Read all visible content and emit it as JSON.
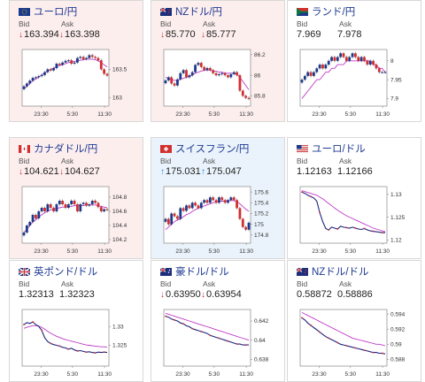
{
  "labels": {
    "bid": "Bid",
    "ask": "Ask"
  },
  "x_ticks": [
    "23:30",
    "5:30",
    "11:30"
  ],
  "cards": [
    {
      "id": "eur-jpy",
      "pair": "ユーロ/円",
      "flag": "eu",
      "bg": "pink",
      "bid": "163.394",
      "ask": "163.398",
      "bid_dir": "down",
      "ask_dir": "down",
      "chart_data": {
        "type": "candlestick",
        "ylim": [
          162.85,
          163.85
        ],
        "y_ticks": [
          "163.5",
          "163"
        ],
        "close": [
          163.2,
          163.25,
          163.3,
          163.35,
          163.36,
          163.38,
          163.4,
          163.45,
          163.5,
          163.48,
          163.52,
          163.6,
          163.58,
          163.62,
          163.65,
          163.66,
          163.6,
          163.62,
          163.7,
          163.72,
          163.68,
          163.7,
          163.75,
          163.72,
          163.7,
          163.66,
          163.5,
          163.42,
          163.39
        ],
        "ma": [
          163.15,
          163.2,
          163.25,
          163.3,
          163.33,
          163.36,
          163.4,
          163.44,
          163.47,
          163.5,
          163.52,
          163.55,
          163.57,
          163.58,
          163.6,
          163.62,
          163.63,
          163.64,
          163.65,
          163.66,
          163.67,
          163.68,
          163.68,
          163.68,
          163.67,
          163.65,
          163.62,
          163.58,
          163.54
        ]
      }
    },
    {
      "id": "nzd-jpy",
      "pair": "NZドル/円",
      "flag": "nz",
      "bg": "pink",
      "bid": "85.770",
      "ask": "85.777",
      "bid_dir": "down",
      "ask_dir": "down",
      "chart_data": {
        "type": "candlestick",
        "ylim": [
          85.7,
          86.25
        ],
        "y_ticks": [
          "86.2",
          "86",
          "85.8"
        ],
        "close": [
          85.95,
          85.98,
          85.92,
          85.9,
          85.96,
          86.02,
          86.05,
          85.98,
          86.0,
          86.03,
          86.1,
          86.12,
          86.08,
          86.05,
          86.07,
          86.05,
          86.02,
          86.0,
          86.01,
          86.02,
          86.0,
          85.98,
          86.01,
          86.03,
          86.0,
          85.85,
          85.8,
          85.78,
          85.77
        ],
        "ma": [
          85.98,
          85.97,
          85.96,
          85.95,
          85.95,
          85.96,
          85.97,
          85.98,
          85.99,
          86.0,
          86.02,
          86.03,
          86.04,
          86.05,
          86.05,
          86.05,
          86.04,
          86.04,
          86.03,
          86.03,
          86.02,
          86.02,
          86.02,
          86.02,
          86.01,
          85.98,
          85.94,
          85.9,
          85.86
        ]
      }
    },
    {
      "id": "zar-jpy",
      "pair": "ランド/円",
      "flag": "za",
      "bg": "white",
      "bid": "7.969",
      "ask": "7.978",
      "bid_dir": "none",
      "ask_dir": "none",
      "chart_data": {
        "type": "candlestick",
        "ylim": [
          7.88,
          8.03
        ],
        "y_ticks": [
          "8",
          "7.95",
          "7.9"
        ],
        "close": [
          7.95,
          7.96,
          7.97,
          7.96,
          7.97,
          7.98,
          7.99,
          7.98,
          7.99,
          8.0,
          8.01,
          8.0,
          8.01,
          8.02,
          8.01,
          8.0,
          8.01,
          8.02,
          8.01,
          8.0,
          8.01,
          8.0,
          7.99,
          8.0,
          7.99,
          7.98,
          7.97,
          7.97,
          7.97
        ],
        "ma": [
          7.9,
          7.91,
          7.92,
          7.93,
          7.94,
          7.95,
          7.95,
          7.96,
          7.97,
          7.97,
          7.98,
          7.98,
          7.99,
          7.99,
          7.99,
          8.0,
          8.0,
          8.0,
          8.0,
          8.0,
          8.0,
          8.0,
          8.0,
          8.0,
          7.99,
          7.99,
          7.98,
          7.98,
          7.97
        ]
      }
    },
    {
      "id": "cad-jpy",
      "pair": "カナダドル/円",
      "flag": "ca",
      "bg": "pink",
      "bid": "104.621",
      "ask": "104.627",
      "bid_dir": "down",
      "ask_dir": "down",
      "chart_data": {
        "type": "candlestick",
        "ylim": [
          104.15,
          104.95
        ],
        "y_ticks": [
          "104.8",
          "104.6",
          "104.4",
          "104.2"
        ],
        "close": [
          104.3,
          104.4,
          104.45,
          104.55,
          104.5,
          104.6,
          104.65,
          104.6,
          104.7,
          104.65,
          104.6,
          104.7,
          104.75,
          104.7,
          104.65,
          104.7,
          104.75,
          104.7,
          104.6,
          104.7,
          104.72,
          104.68,
          104.7,
          104.75,
          104.72,
          104.66,
          104.6,
          104.63,
          104.62
        ],
        "ma": [
          104.3,
          104.35,
          104.4,
          104.45,
          104.48,
          104.52,
          104.55,
          104.58,
          104.6,
          104.62,
          104.63,
          104.64,
          104.65,
          104.66,
          104.66,
          104.67,
          104.67,
          104.68,
          104.68,
          104.68,
          104.68,
          104.69,
          104.69,
          104.69,
          104.69,
          104.68,
          104.67,
          104.66,
          104.65
        ]
      }
    },
    {
      "id": "chf-jpy",
      "pair": "スイスフラン/円",
      "flag": "ch",
      "bg": "blue",
      "bid": "175.031",
      "ask": "175.047",
      "bid_dir": "up",
      "ask_dir": "up",
      "chart_data": {
        "type": "candlestick",
        "ylim": [
          174.65,
          175.7
        ],
        "y_ticks": [
          "175.6",
          "175.4",
          "175.2",
          "175",
          "174.8"
        ],
        "close": [
          175.1,
          175.0,
          175.2,
          175.15,
          175.1,
          175.3,
          175.25,
          175.35,
          175.3,
          175.4,
          175.35,
          175.3,
          175.4,
          175.45,
          175.4,
          175.5,
          175.45,
          175.4,
          175.5,
          175.45,
          175.4,
          175.45,
          175.5,
          175.45,
          175.3,
          175.1,
          174.95,
          174.9,
          175.03
        ],
        "ma": [
          174.9,
          174.95,
          175.0,
          175.05,
          175.08,
          175.1,
          175.14,
          175.18,
          175.2,
          175.24,
          175.27,
          175.3,
          175.32,
          175.34,
          175.36,
          175.38,
          175.4,
          175.41,
          175.42,
          175.43,
          175.43,
          175.44,
          175.44,
          175.44,
          175.42,
          175.38,
          175.33,
          175.28,
          175.24
        ]
      }
    },
    {
      "id": "eur-usd",
      "pair": "ユーロ/ドル",
      "flag": "us",
      "bg": "white",
      "bid": "1.12163",
      "ask": "1.12166",
      "bid_dir": "none",
      "ask_dir": "none",
      "chart_data": {
        "type": "line",
        "ylim": [
          1.1193,
          1.1317
        ],
        "y_ticks": [
          "1.13",
          "1.125",
          "1.12"
        ],
        "close": [
          1.1305,
          1.1302,
          1.1298,
          1.1295,
          1.1292,
          1.1285,
          1.126,
          1.124,
          1.1225,
          1.1222,
          1.1228,
          1.1226,
          1.1224,
          1.123,
          1.1228,
          1.1227,
          1.1226,
          1.1228,
          1.1226,
          1.1224,
          1.1223,
          1.1225,
          1.1222,
          1.122,
          1.1219,
          1.1218,
          1.1217,
          1.1216,
          1.1216
        ],
        "ma": [
          1.1308,
          1.1306,
          1.1304,
          1.1302,
          1.13,
          1.1298,
          1.1294,
          1.129,
          1.1285,
          1.128,
          1.1275,
          1.127,
          1.1265,
          1.1261,
          1.1257,
          1.1253,
          1.125,
          1.1247,
          1.1244,
          1.1241,
          1.1238,
          1.1235,
          1.1232,
          1.1229,
          1.1226,
          1.1224,
          1.1222,
          1.122,
          1.1218
        ]
      }
    },
    {
      "id": "gbp-usd",
      "pair": "英ポンド/ドル",
      "flag": "gb",
      "bg": "white",
      "bid": "1.32313",
      "ask": "1.32323",
      "bid_dir": "none",
      "ask_dir": "none",
      "chart_data": {
        "type": "line",
        "ylim": [
          1.3195,
          1.3345
        ],
        "y_ticks": [
          "1.33",
          "1.325"
        ],
        "close": [
          1.3305,
          1.331,
          1.3308,
          1.3312,
          1.3305,
          1.33,
          1.329,
          1.327,
          1.326,
          1.3255,
          1.3252,
          1.325,
          1.3248,
          1.3245,
          1.3243,
          1.324,
          1.3242,
          1.3238,
          1.3235,
          1.3236,
          1.3234,
          1.3232,
          1.3233,
          1.3231,
          1.323,
          1.3232,
          1.3231,
          1.3232,
          1.3231
        ],
        "ma": [
          1.3295,
          1.3298,
          1.33,
          1.3302,
          1.3302,
          1.3301,
          1.3298,
          1.3293,
          1.3287,
          1.3282,
          1.3278,
          1.3274,
          1.3271,
          1.3268,
          1.3265,
          1.3263,
          1.3261,
          1.3259,
          1.3257,
          1.3255,
          1.3253,
          1.3251,
          1.325,
          1.3249,
          1.3248,
          1.3247,
          1.3246,
          1.3246,
          1.3245
        ]
      }
    },
    {
      "id": "aud-usd",
      "pair": "豪ドル/ドル",
      "flag": "au",
      "bg": "white",
      "bid": "0.63950",
      "ask": "0.63954",
      "bid_dir": "down",
      "ask_dir": "down",
      "chart_data": {
        "type": "line",
        "ylim": [
          0.6373,
          0.6432
        ],
        "y_ticks": [
          "0.642",
          "0.64",
          "0.638"
        ],
        "close": [
          0.6425,
          0.6424,
          0.6422,
          0.6421,
          0.642,
          0.6418,
          0.6417,
          0.6415,
          0.6414,
          0.6412,
          0.6411,
          0.641,
          0.6409,
          0.6408,
          0.6407,
          0.6405,
          0.6404,
          0.6403,
          0.6402,
          0.6401,
          0.64,
          0.6399,
          0.6398,
          0.6397,
          0.6396,
          0.6396,
          0.6395,
          0.6395,
          0.6395
        ],
        "ma": [
          0.6428,
          0.6427,
          0.6426,
          0.6425,
          0.6424,
          0.6423,
          0.6422,
          0.6421,
          0.642,
          0.6419,
          0.6418,
          0.6417,
          0.6416,
          0.6415,
          0.6414,
          0.6413,
          0.6412,
          0.6411,
          0.641,
          0.6409,
          0.6408,
          0.6407,
          0.6406,
          0.6405,
          0.6404,
          0.6403,
          0.6402,
          0.6401,
          0.64
        ]
      }
    },
    {
      "id": "nzd-usd",
      "pair": "NZドル/ドル",
      "flag": "nz",
      "bg": "white",
      "bid": "0.58872",
      "ask": "0.58886",
      "bid_dir": "none",
      "ask_dir": "none",
      "chart_data": {
        "type": "line",
        "ylim": [
          0.5871,
          0.5946
        ],
        "y_ticks": [
          "0.594",
          "0.592",
          "0.59",
          "0.588"
        ],
        "close": [
          0.5935,
          0.5932,
          0.5928,
          0.5925,
          0.5922,
          0.5919,
          0.5916,
          0.5913,
          0.591,
          0.5908,
          0.5906,
          0.5904,
          0.5902,
          0.59,
          0.5899,
          0.5898,
          0.5897,
          0.5896,
          0.5895,
          0.5894,
          0.5893,
          0.5892,
          0.5891,
          0.589,
          0.5889,
          0.5889,
          0.5888,
          0.5888,
          0.5887
        ],
        "ma": [
          0.5942,
          0.594,
          0.5938,
          0.5936,
          0.5934,
          0.5932,
          0.593,
          0.5928,
          0.5926,
          0.5924,
          0.5922,
          0.592,
          0.5918,
          0.5916,
          0.5914,
          0.5912,
          0.591,
          0.5908,
          0.5907,
          0.5906,
          0.5905,
          0.5904,
          0.5903,
          0.5902,
          0.5901,
          0.59,
          0.59,
          0.5899,
          0.5898
        ]
      }
    }
  ]
}
